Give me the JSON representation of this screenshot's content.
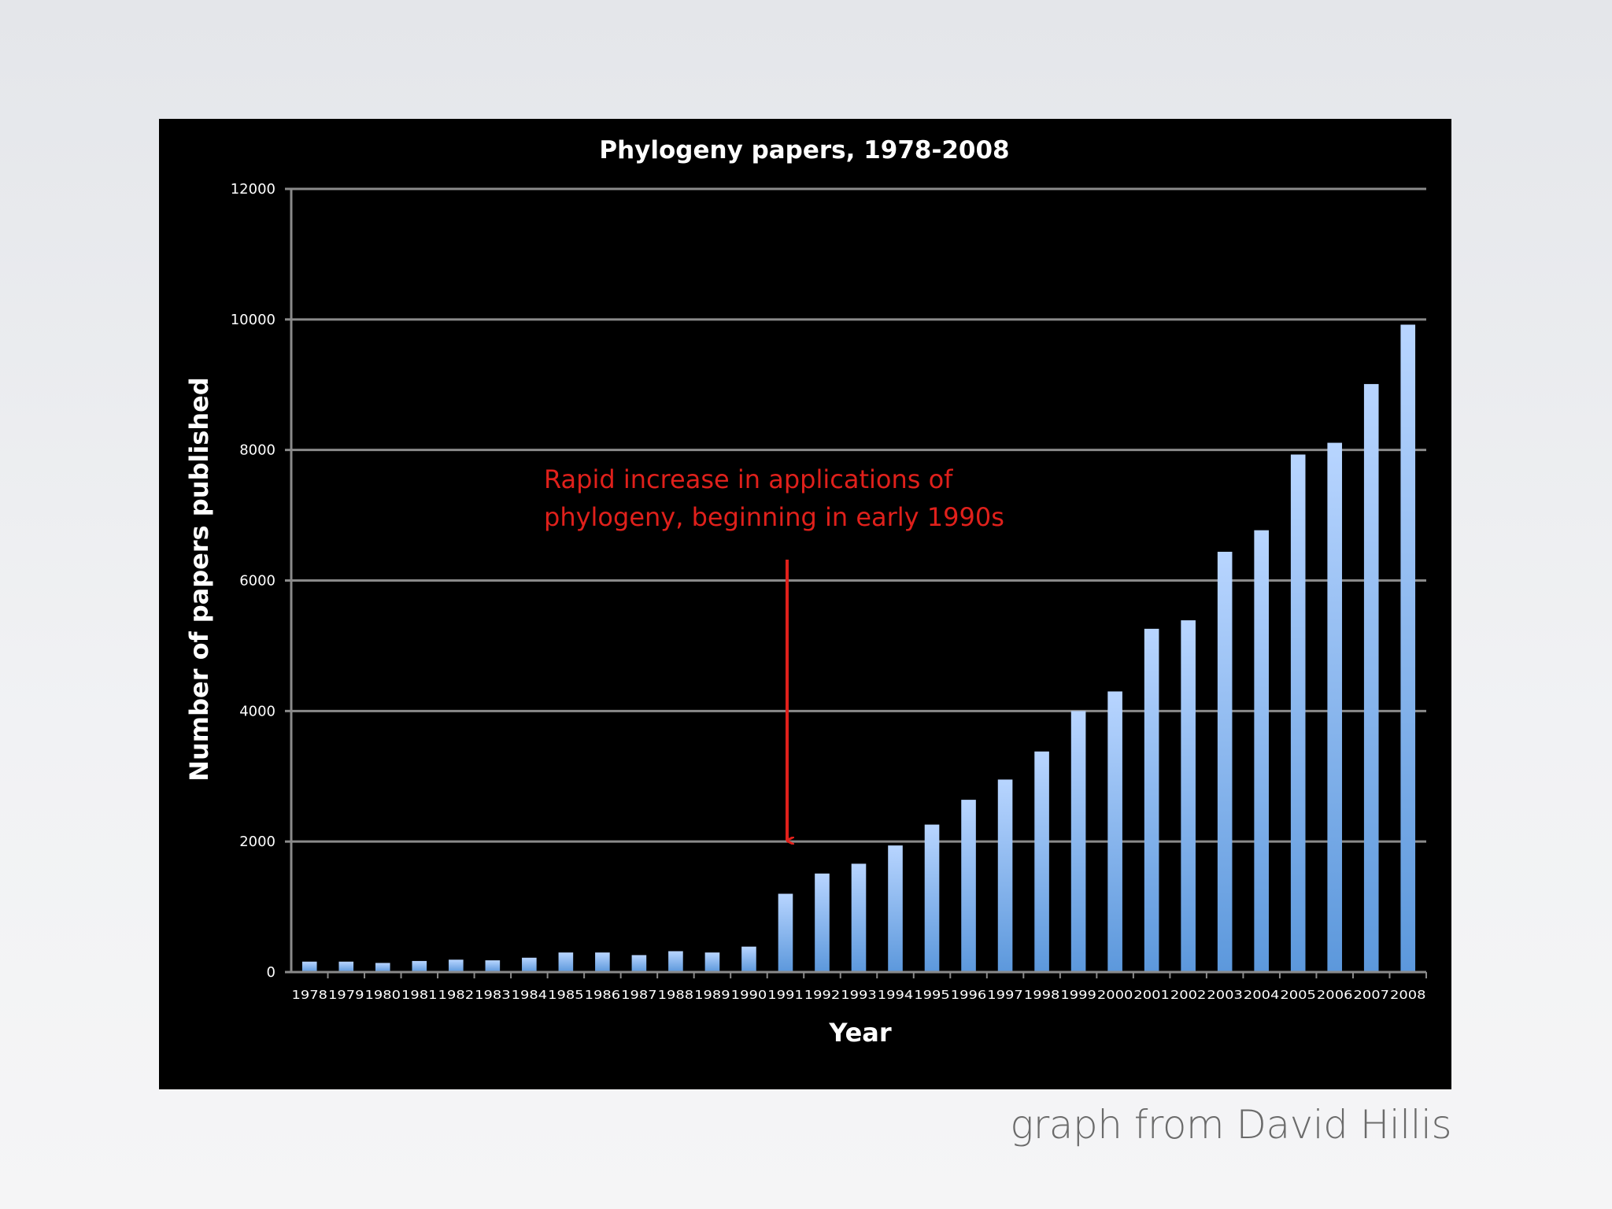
{
  "chart_data": {
    "type": "bar",
    "title": "Phylogeny papers, 1978-2008",
    "xlabel": "Year",
    "ylabel": "Number of papers published",
    "ylim": [
      0,
      12000
    ],
    "yticks": [
      0,
      2000,
      4000,
      6000,
      8000,
      10000,
      12000
    ],
    "grid": true,
    "categories": [
      "1978",
      "1979",
      "1980",
      "1981",
      "1982",
      "1983",
      "1984",
      "1985",
      "1986",
      "1987",
      "1988",
      "1989",
      "1990",
      "1991",
      "1992",
      "1993",
      "1994",
      "1995",
      "1996",
      "1997",
      "1998",
      "1999",
      "2000",
      "2001",
      "2002",
      "2003",
      "2004",
      "2005",
      "2006",
      "2007",
      "2008"
    ],
    "values": [
      160,
      160,
      140,
      170,
      190,
      180,
      220,
      300,
      300,
      260,
      320,
      300,
      390,
      1200,
      1510,
      1660,
      1940,
      2260,
      2640,
      2950,
      3380,
      4000,
      4300,
      5260,
      5390,
      6440,
      6770,
      7930,
      8110,
      9010,
      9920
    ],
    "annotation": {
      "lines": [
        "Rapid increase in applications of",
        "phylogeny, beginning in early 1990s"
      ],
      "points_to": "1991"
    },
    "colors": {
      "bar_top": "#b8d5ff",
      "bar_bottom": "#5c98dc",
      "annotation": "#e0201b",
      "background": "#000000"
    }
  },
  "credit": "graph from David Hillis"
}
